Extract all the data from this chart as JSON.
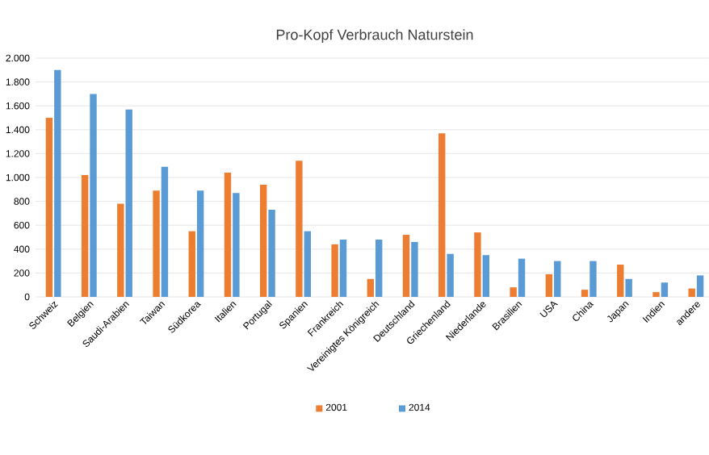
{
  "chart_data": {
    "type": "bar",
    "title": "Pro-Kopf Verbrauch Naturstein",
    "categories": [
      "Schweiz",
      "Belgien",
      "Saudi-Arabien",
      "Taiwan",
      "Südkorea",
      "Italien",
      "Portugal",
      "Spanien",
      "Frankreich",
      "Vereinigtes Königreich",
      "Deutschland",
      "Griechenland",
      "Niederlande",
      "Brasilien",
      "USA",
      "China",
      "Japan",
      "Indien",
      "andere"
    ],
    "series": [
      {
        "name": "2001",
        "color": "#ed7d31",
        "values": [
          1500,
          1020,
          780,
          890,
          550,
          1040,
          940,
          1140,
          440,
          150,
          520,
          1370,
          540,
          80,
          190,
          60,
          270,
          40,
          70
        ]
      },
      {
        "name": "2014",
        "color": "#5b9bd5",
        "values": [
          1900,
          1700,
          1570,
          1090,
          890,
          870,
          730,
          550,
          480,
          480,
          460,
          360,
          350,
          320,
          300,
          300,
          150,
          120,
          180
        ]
      }
    ],
    "ylim": [
      0,
      2000
    ],
    "yticks": [
      {
        "value": 0,
        "label": "0"
      },
      {
        "value": 200,
        "label": "200"
      },
      {
        "value": 400,
        "label": "400"
      },
      {
        "value": 600,
        "label": "600"
      },
      {
        "value": 800,
        "label": "800"
      },
      {
        "value": 1000,
        "label": "1.000"
      },
      {
        "value": 1200,
        "label": "1.200"
      },
      {
        "value": 1400,
        "label": "1.400"
      },
      {
        "value": 1600,
        "label": "1.600"
      },
      {
        "value": 1800,
        "label": "1.800"
      },
      {
        "value": 2000,
        "label": "2.000"
      }
    ],
    "grid": "y",
    "legend": "bottom"
  }
}
